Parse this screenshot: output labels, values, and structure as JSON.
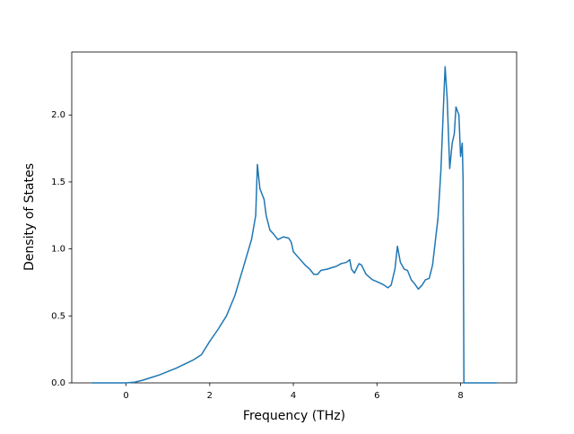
{
  "chart_data": {
    "type": "line",
    "xlabel": "Frequency (THz)",
    "ylabel": "Density of States",
    "x": [
      -0.82,
      -0.5,
      0,
      0.2,
      0.4,
      0.6,
      0.8,
      1.0,
      1.2,
      1.4,
      1.6,
      1.8,
      2.0,
      2.2,
      2.4,
      2.6,
      2.82,
      3.0,
      3.1,
      3.14,
      3.2,
      3.3,
      3.35,
      3.44,
      3.53,
      3.63,
      3.76,
      3.89,
      3.95,
      4.0,
      4.11,
      4.28,
      4.39,
      4.49,
      4.58,
      4.66,
      4.82,
      4.92,
      5.03,
      5.14,
      5.27,
      5.35,
      5.39,
      5.46,
      5.57,
      5.63,
      5.74,
      5.89,
      6.04,
      6.17,
      6.26,
      6.34,
      6.43,
      6.49,
      6.56,
      6.65,
      6.73,
      6.82,
      6.9,
      6.99,
      7.08,
      7.16,
      7.25,
      7.33,
      7.4,
      7.46,
      7.53,
      7.59,
      7.63,
      7.68,
      7.74,
      7.8,
      7.85,
      7.89,
      7.96,
      8.0,
      8.04,
      8.06,
      8.08,
      8.86
    ],
    "series": [
      {
        "color": "#1f77b4",
        "values": [
          0,
          0,
          0,
          0.005,
          0.02,
          0.04,
          0.06,
          0.085,
          0.11,
          0.14,
          0.17,
          0.21,
          0.31,
          0.4,
          0.5,
          0.65,
          0.88,
          1.07,
          1.25,
          1.63,
          1.45,
          1.37,
          1.25,
          1.14,
          1.11,
          1.07,
          1.09,
          1.08,
          1.05,
          0.98,
          0.94,
          0.88,
          0.85,
          0.81,
          0.81,
          0.84,
          0.85,
          0.86,
          0.87,
          0.89,
          0.9,
          0.92,
          0.85,
          0.82,
          0.89,
          0.88,
          0.81,
          0.77,
          0.75,
          0.73,
          0.71,
          0.73,
          0.85,
          1.02,
          0.9,
          0.85,
          0.84,
          0.77,
          0.74,
          0.7,
          0.73,
          0.77,
          0.78,
          0.88,
          1.07,
          1.23,
          1.59,
          2.06,
          2.36,
          2.12,
          1.6,
          1.79,
          1.86,
          2.06,
          2.0,
          1.69,
          1.79,
          1.52,
          0,
          0
        ]
      }
    ],
    "xlim": [
      -1.3,
      9.34
    ],
    "ylim": [
      0,
      2.47
    ],
    "xticks": [
      0,
      2,
      4,
      6,
      8
    ],
    "yticks": [
      {
        "value": 0,
        "label": "0.0"
      },
      0.5,
      {
        "value": 1,
        "label": "1.0"
      },
      1.5,
      {
        "value": 2,
        "label": "2.0"
      }
    ]
  }
}
